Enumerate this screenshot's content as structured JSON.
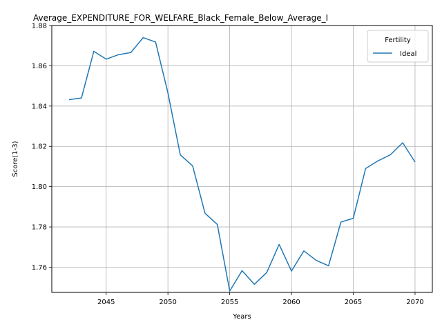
{
  "chart_data": {
    "type": "line",
    "title": "Average_EXPENDITURE_FOR_WELFARE_Black_Female_Below_Average_I",
    "xlabel": "Years",
    "ylabel": "Score(1-3)",
    "xlim": [
      2040.6,
      2071.4
    ],
    "ylim": [
      1.7475,
      1.88
    ],
    "xticks": [
      2045,
      2050,
      2055,
      2060,
      2065,
      2070
    ],
    "yticks": [
      1.76,
      1.78,
      1.8,
      1.82,
      1.84,
      1.86,
      1.88
    ],
    "ytick_labels": [
      "1.76",
      "1.78",
      "1.80",
      "1.82",
      "1.84",
      "1.86",
      "1.88"
    ],
    "grid": true,
    "legend": {
      "title": "Fertility",
      "placement": "top-right"
    },
    "series": [
      {
        "name": "Ideal",
        "color": "#1f77b4",
        "x": [
          2042,
          2043,
          2044,
          2045,
          2046,
          2047,
          2048,
          2049,
          2050,
          2051,
          2052,
          2053,
          2054,
          2055,
          2056,
          2057,
          2058,
          2059,
          2060,
          2061,
          2062,
          2063,
          2064,
          2065,
          2066,
          2067,
          2068,
          2069,
          2070
        ],
        "y": [
          1.8432,
          1.844,
          1.8672,
          1.8633,
          1.8655,
          1.8666,
          1.874,
          1.8718,
          1.8465,
          1.8158,
          1.8103,
          1.7868,
          1.7812,
          1.7482,
          1.7583,
          1.7515,
          1.7574,
          1.7713,
          1.7581,
          1.7681,
          1.7634,
          1.7607,
          1.7824,
          1.7843,
          1.809,
          1.8128,
          1.8158,
          1.8218,
          1.8122
        ]
      }
    ]
  }
}
